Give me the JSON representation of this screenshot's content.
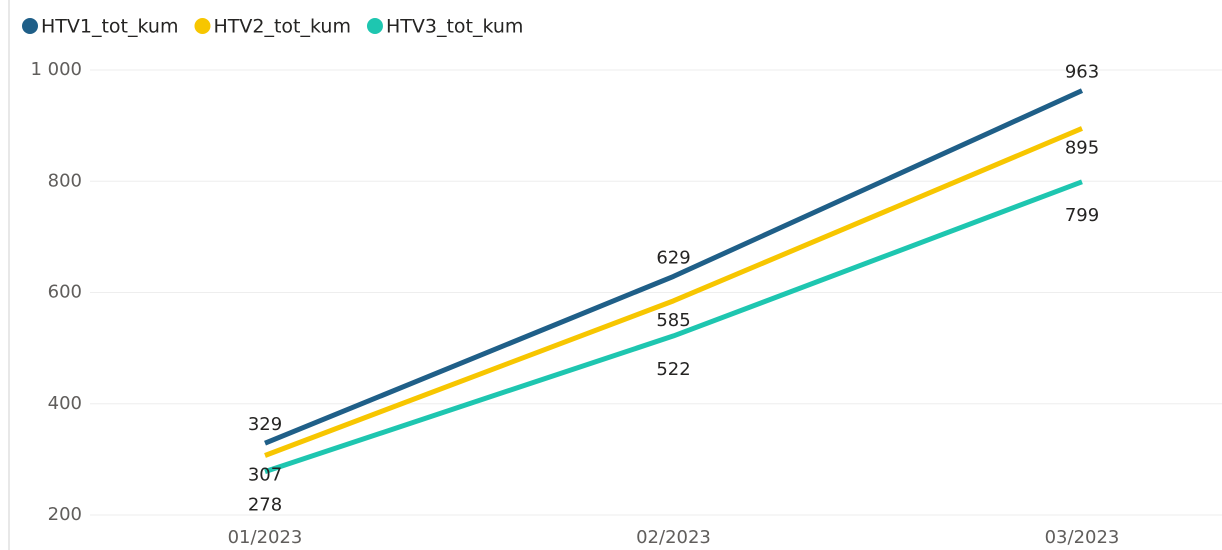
{
  "chart_data": {
    "type": "line",
    "categories": [
      "01/2023",
      "02/2023",
      "03/2023"
    ],
    "series": [
      {
        "name": "HTV1_tot_kum",
        "color": "#1f5f88",
        "values": [
          329,
          629,
          963
        ]
      },
      {
        "name": "HTV2_tot_kum",
        "color": "#f7c600",
        "values": [
          307,
          585,
          895
        ]
      },
      {
        "name": "HTV3_tot_kum",
        "color": "#1ec6b0",
        "values": [
          278,
          522,
          799
        ]
      }
    ],
    "ylim": [
      175,
      1015
    ],
    "yticks": [
      200,
      400,
      600,
      {
        "value": 1000,
        "label": "1 000"
      },
      800
    ],
    "grid": true,
    "legend": "top-left"
  }
}
